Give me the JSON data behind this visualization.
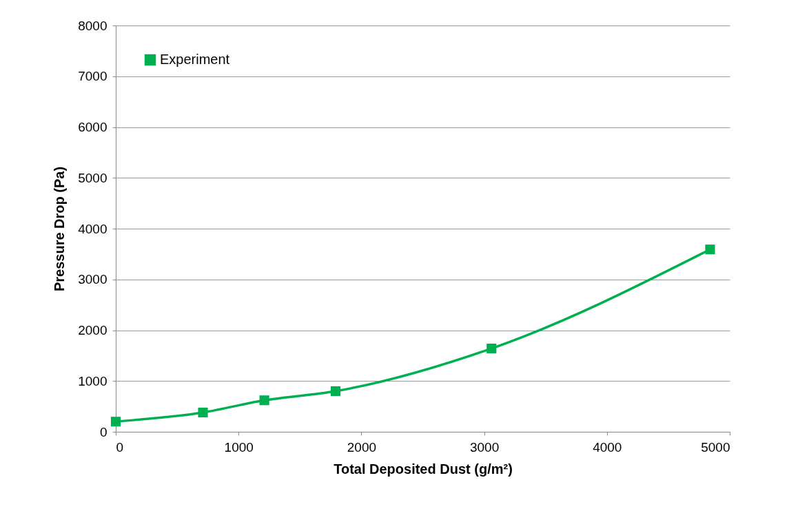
{
  "chart_data": {
    "type": "line",
    "xlabel": "Total Deposited Dust (g/m²)",
    "ylabel": "Pressure Drop (Pa)",
    "x": [
      0,
      710,
      1210,
      1790,
      3060,
      4840
    ],
    "series": [
      {
        "name": "Experiment",
        "color": "#00b050",
        "values": [
          200,
          380,
          620,
          800,
          1640,
          3590
        ]
      }
    ],
    "xlim": [
      0,
      5000
    ],
    "xticks": [
      0,
      1000,
      2000,
      3000,
      4000,
      5000
    ],
    "ylim": [
      0,
      8000
    ],
    "yticks": [
      0,
      1000,
      2000,
      3000,
      4000,
      5000,
      6000,
      7000,
      8000
    ],
    "grid": "y",
    "legend": "top left",
    "marker": "square",
    "line_style": "solid"
  }
}
